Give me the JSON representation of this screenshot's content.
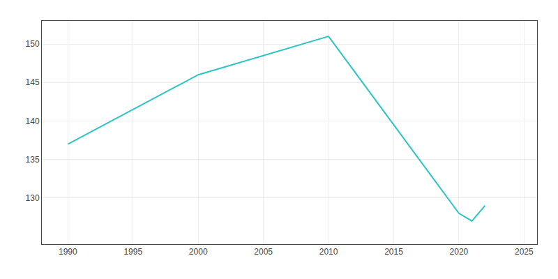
{
  "chart_data": {
    "type": "line",
    "x": [
      1990,
      2000,
      2010,
      2020,
      2021,
      2022
    ],
    "values": [
      137,
      146,
      151,
      128,
      127,
      129
    ],
    "color": "#2EC4C4",
    "xlim": [
      1988,
      2026
    ],
    "ylim": [
      124,
      153
    ],
    "xticks": [
      1990,
      1995,
      2000,
      2005,
      2010,
      2015,
      2020,
      2025
    ],
    "yticks": [
      130,
      135,
      140,
      145,
      150
    ],
    "grid": true
  }
}
